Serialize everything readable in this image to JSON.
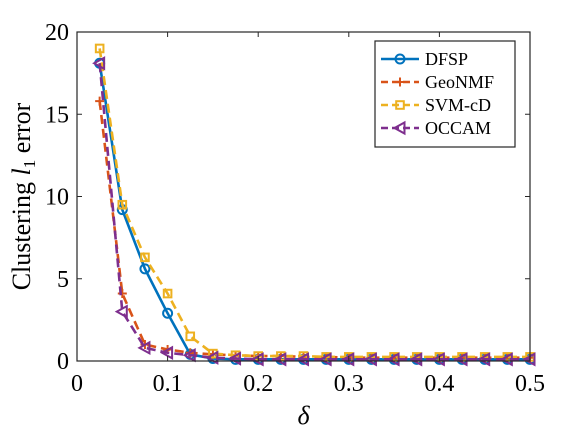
{
  "chart_data": {
    "type": "line",
    "xlabel": "δ",
    "ylabel_parts": {
      "prefix": "Clustering ",
      "var": "l",
      "sub": "1",
      "suffix": " error"
    },
    "xlim": [
      0,
      0.5
    ],
    "ylim": [
      0,
      20
    ],
    "xticks": [
      0,
      0.1,
      0.2,
      0.3,
      0.4,
      0.5
    ],
    "xtick_labels": [
      "0",
      "0.1",
      "0.2",
      "0.3",
      "0.4",
      "0.5"
    ],
    "yticks": [
      0,
      5,
      10,
      15,
      20
    ],
    "ytick_labels": [
      "0",
      "5",
      "10",
      "15",
      "20"
    ],
    "grid": false,
    "legend_position": "top-right",
    "x": [
      0.025,
      0.05,
      0.075,
      0.1,
      0.125,
      0.15,
      0.175,
      0.2,
      0.225,
      0.25,
      0.275,
      0.3,
      0.325,
      0.35,
      0.375,
      0.4,
      0.425,
      0.45,
      0.475,
      0.5
    ],
    "series": [
      {
        "name": "DFSP",
        "color": "#0072BD",
        "dash": "solid",
        "marker": "circle",
        "values": [
          18.1,
          9.2,
          5.6,
          2.9,
          0.4,
          0.15,
          0.1,
          0.1,
          0.1,
          0.1,
          0.1,
          0.1,
          0.1,
          0.1,
          0.1,
          0.1,
          0.1,
          0.1,
          0.1,
          0.1
        ]
      },
      {
        "name": "GeoNMF",
        "color": "#D95319",
        "dash": "dashed",
        "marker": "plus",
        "values": [
          15.8,
          4.1,
          1.0,
          0.7,
          0.5,
          0.4,
          0.35,
          0.3,
          0.3,
          0.25,
          0.25,
          0.2,
          0.2,
          0.2,
          0.2,
          0.2,
          0.2,
          0.2,
          0.2,
          0.2
        ]
      },
      {
        "name": "SVM-cD",
        "color": "#EDB120",
        "dash": "dashed",
        "marker": "square",
        "values": [
          19.0,
          9.5,
          6.3,
          4.1,
          1.5,
          0.45,
          0.35,
          0.3,
          0.3,
          0.3,
          0.25,
          0.25,
          0.25,
          0.25,
          0.25,
          0.25,
          0.25,
          0.25,
          0.25,
          0.25
        ]
      },
      {
        "name": "OCCAM",
        "color": "#7E2F8E",
        "dash": "dashed",
        "marker": "triangle-left",
        "values": [
          18.1,
          3.0,
          0.8,
          0.5,
          0.35,
          0.2,
          0.15,
          0.1,
          0.1,
          0.1,
          0.1,
          0.1,
          0.1,
          0.1,
          0.1,
          0.1,
          0.1,
          0.1,
          0.1,
          0.1
        ]
      }
    ]
  }
}
